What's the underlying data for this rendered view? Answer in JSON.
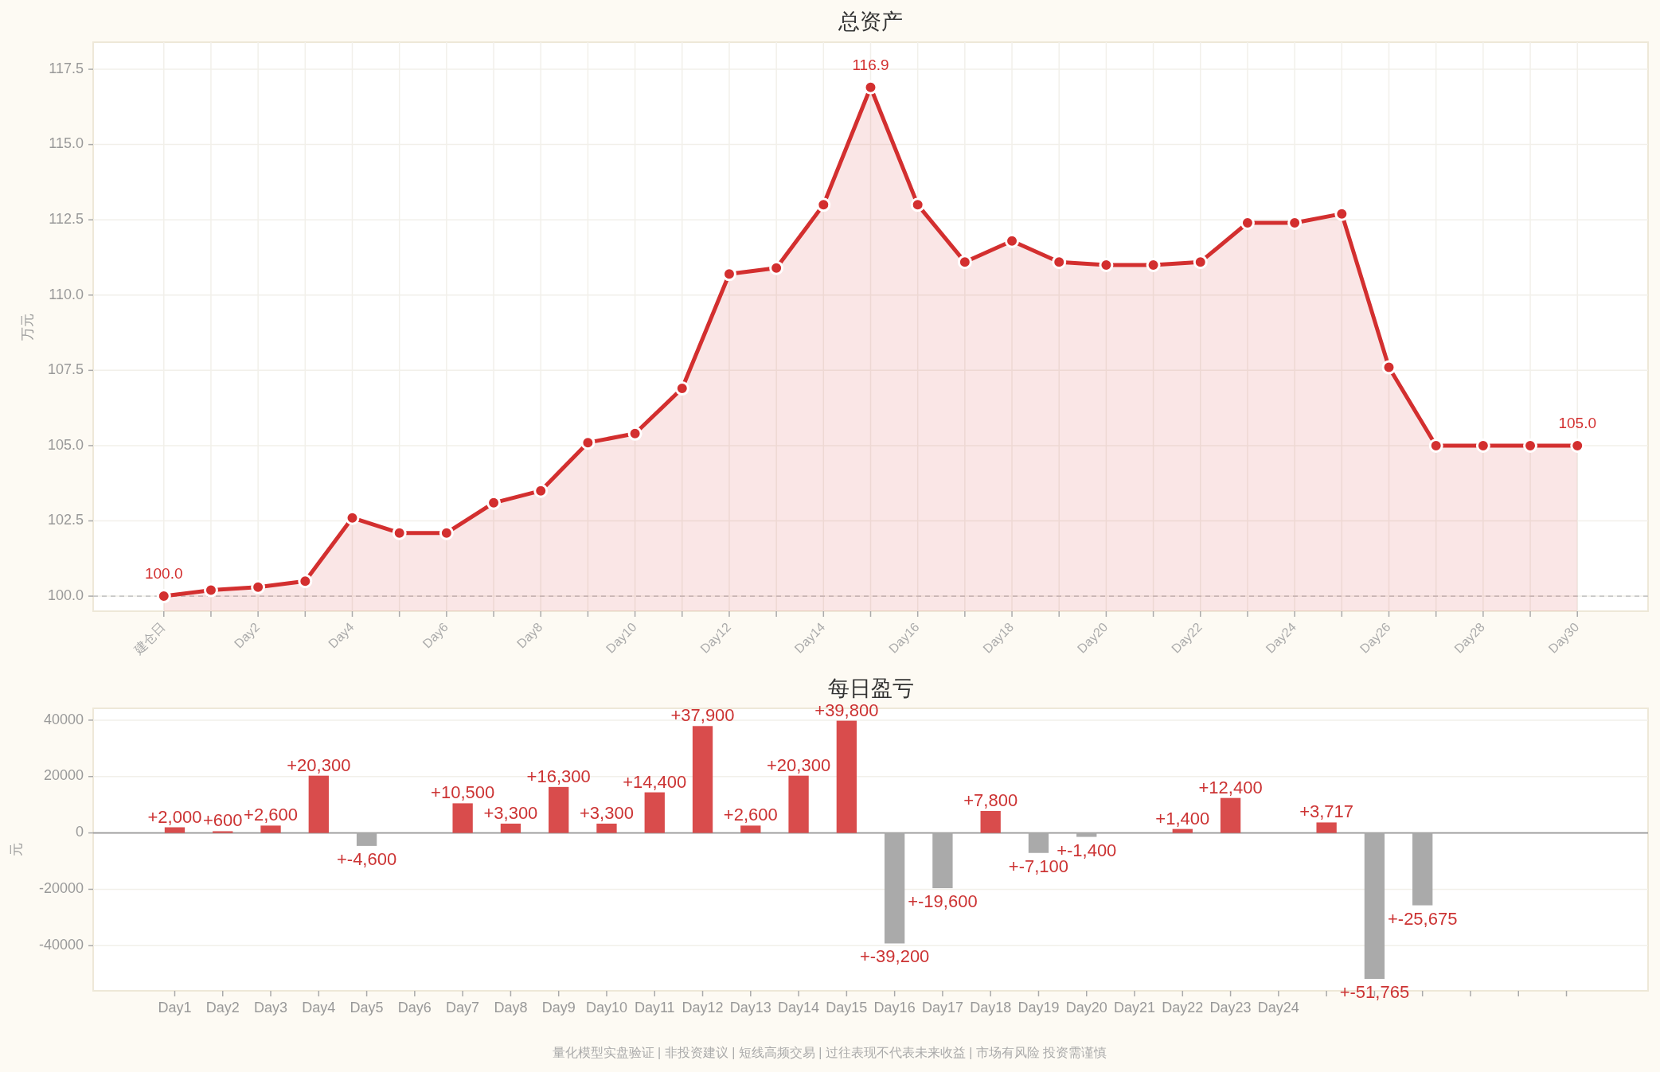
{
  "chart_data": [
    {
      "type": "area",
      "title": "总资产",
      "ylabel": "万元",
      "categories": [
        "建仓日",
        null,
        "Day2",
        null,
        "Day4",
        null,
        "Day6",
        null,
        "Day8",
        null,
        "Day10",
        null,
        "Day12",
        null,
        "Day14",
        null,
        "Day16",
        null,
        "Day18",
        null,
        "Day20",
        null,
        "Day22",
        null,
        "Day24",
        null,
        "Day26",
        null,
        "Day28",
        null,
        "Day30"
      ],
      "values": [
        100.0,
        100.2,
        100.3,
        100.5,
        102.6,
        102.1,
        102.1,
        103.1,
        103.5,
        105.1,
        105.4,
        106.9,
        110.7,
        110.9,
        113.0,
        116.9,
        113.0,
        111.1,
        111.8,
        111.1,
        111.0,
        111.0,
        111.1,
        112.4,
        112.4,
        112.7,
        107.6,
        105.0,
        105.0,
        105.0,
        105.0
      ],
      "value_labels": [
        "100.0",
        null,
        null,
        null,
        null,
        null,
        null,
        null,
        null,
        null,
        null,
        null,
        null,
        null,
        null,
        "116.9",
        null,
        null,
        null,
        null,
        null,
        null,
        null,
        null,
        null,
        null,
        null,
        null,
        null,
        null,
        "105.0"
      ],
      "color": "#d32f2f",
      "ylim": [
        99.5,
        118.4
      ],
      "yticks": [
        {
          "value": 100,
          "label": "100.0"
        },
        {
          "value": 102.5,
          "label": "102.5"
        },
        {
          "value": 105,
          "label": "105.0"
        },
        {
          "value": 107.5,
          "label": "107.5"
        },
        {
          "value": 110,
          "label": "110.0"
        },
        {
          "value": 112.5,
          "label": "112.5"
        },
        {
          "value": 115,
          "label": "115.0"
        },
        {
          "value": 117.5,
          "label": "117.5"
        }
      ],
      "grid": true,
      "marker": "circle",
      "ref_lines": [
        {
          "axis": "y",
          "value": 100,
          "color": "#c8c8c8",
          "line_style": "dashed"
        }
      ]
    },
    {
      "type": "bar",
      "title": "每日盈亏",
      "ylabel": "元",
      "categories": [
        "Day1",
        "Day2",
        "Day3",
        "Day4",
        "Day5",
        "Day6",
        "Day7",
        "Day8",
        "Day9",
        "Day10",
        "Day11",
        "Day12",
        "Day13",
        "Day14",
        "Day15",
        "Day16",
        "Day17",
        "Day18",
        "Day19",
        "Day20",
        "Day21",
        "Day22",
        "Day23",
        "Day24",
        null,
        null,
        null,
        null,
        null,
        null
      ],
      "values": [
        2000,
        600,
        2600,
        20300,
        -4600,
        0,
        10500,
        3300,
        16300,
        3300,
        14400,
        37900,
        2600,
        20300,
        39800,
        -39200,
        -19600,
        7800,
        -7100,
        -1400,
        0,
        1400,
        12400,
        0,
        3717,
        -51765,
        -25675,
        0,
        0,
        0
      ],
      "value_labels": [
        "+2,000",
        "+600",
        "+2,600",
        "+20,300",
        "+-4,600",
        null,
        "+10,500",
        "+3,300",
        "+16,300",
        "+3,300",
        "+14,400",
        "+37,900",
        "+2,600",
        "+20,300",
        "+39,800",
        "+-39,200",
        "+-19,600",
        "+7,800",
        "+-7,100",
        "+-1,400",
        null,
        "+1,400",
        "+12,400",
        null,
        "+3,717",
        "+-51,765",
        "+-25,675",
        null,
        null,
        null
      ],
      "colors": [
        "#d94c4c",
        "#d94c4c",
        "#d94c4c",
        "#d94c4c",
        "#aaaaaa",
        "#d94c4c",
        "#d94c4c",
        "#d94c4c",
        "#d94c4c",
        "#d94c4c",
        "#d94c4c",
        "#d94c4c",
        "#d94c4c",
        "#d94c4c",
        "#d94c4c",
        "#aaaaaa",
        "#aaaaaa",
        "#d94c4c",
        "#aaaaaa",
        "#aaaaaa",
        "#d94c4c",
        "#d94c4c",
        "#d94c4c",
        "#d94c4c",
        "#d94c4c",
        "#aaaaaa",
        "#aaaaaa",
        "#d94c4c",
        "#d94c4c",
        "#d94c4c"
      ],
      "ylim": [
        -56000,
        44200
      ],
      "yticks": [
        -40000,
        -20000,
        0,
        20000,
        40000
      ],
      "grid": "y",
      "ref_lines": [
        {
          "axis": "y",
          "value": 0,
          "color": "#999999"
        }
      ],
      "annotations": [
        "量化模型实盘验证 | 非投资建议 | 短线高频交易 | 过往表现不代表未来收益 | 市场有风险 投资需谨慎"
      ]
    }
  ]
}
